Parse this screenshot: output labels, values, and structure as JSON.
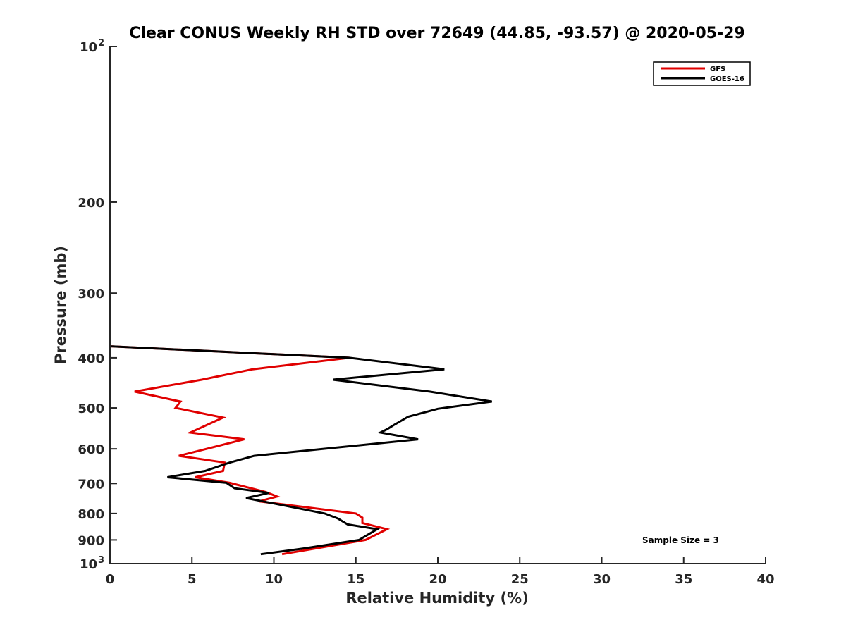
{
  "chart_data": {
    "type": "line",
    "title": "Clear CONUS Weekly RH STD over 72649 (44.85, -93.57) @ 2020-05-29",
    "xlabel": "Relative Humidity (%)",
    "ylabel": "Pressure (mb)",
    "xlim": [
      0,
      40
    ],
    "ylim": [
      100,
      1000
    ],
    "y_scale": "log",
    "y_reversed": true,
    "x_ticks": [
      "0",
      "5",
      "10",
      "15",
      "20",
      "25",
      "30",
      "35",
      "40"
    ],
    "y_ticks": [
      {
        "value": 100,
        "label": "10",
        "exp": "2"
      },
      {
        "value": 200,
        "label": "200",
        "exp": ""
      },
      {
        "value": 300,
        "label": "300",
        "exp": ""
      },
      {
        "value": 400,
        "label": "400",
        "exp": ""
      },
      {
        "value": 500,
        "label": "500",
        "exp": ""
      },
      {
        "value": 600,
        "label": "600",
        "exp": ""
      },
      {
        "value": 700,
        "label": "700",
        "exp": ""
      },
      {
        "value": 800,
        "label": "800",
        "exp": ""
      },
      {
        "value": 900,
        "label": "900",
        "exp": ""
      },
      {
        "value": 1000,
        "label": "10",
        "exp": "3"
      }
    ],
    "legend_position": "top-right",
    "grid": false,
    "annotation": "Sample Size = 3",
    "series": [
      {
        "name": "GFS",
        "color": "#e00000",
        "points": [
          [
            0,
            100
          ],
          [
            0,
            380
          ],
          [
            14.6,
            400
          ],
          [
            8.7,
            421
          ],
          [
            5.6,
            441
          ],
          [
            1.5,
            465
          ],
          [
            4.3,
            486
          ],
          [
            4.0,
            500
          ],
          [
            6.9,
            522
          ],
          [
            4.9,
            558
          ],
          [
            8.2,
            575
          ],
          [
            4.2,
            619
          ],
          [
            7.0,
            638
          ],
          [
            6.9,
            662
          ],
          [
            5.2,
            681
          ],
          [
            7.3,
            698
          ],
          [
            9.5,
            727
          ],
          [
            10.2,
            742
          ],
          [
            9.1,
            758
          ],
          [
            15.0,
            800
          ],
          [
            15.4,
            815
          ],
          [
            15.4,
            835
          ],
          [
            16.9,
            858
          ],
          [
            15.6,
            900
          ],
          [
            10.5,
            959
          ]
        ]
      },
      {
        "name": "GOES-16",
        "color": "#000000",
        "points": [
          [
            0,
            100
          ],
          [
            0,
            380
          ],
          [
            14.6,
            400
          ],
          [
            20.4,
            421
          ],
          [
            13.6,
            441
          ],
          [
            19.5,
            465
          ],
          [
            23.3,
            486
          ],
          [
            20.0,
            502
          ],
          [
            18.2,
            520
          ],
          [
            17.3,
            540
          ],
          [
            16.9,
            550
          ],
          [
            16.5,
            558
          ],
          [
            18.8,
            575
          ],
          [
            8.8,
            619
          ],
          [
            7.3,
            638
          ],
          [
            5.8,
            662
          ],
          [
            3.5,
            681
          ],
          [
            7.1,
            698
          ],
          [
            7.6,
            715
          ],
          [
            9.7,
            730
          ],
          [
            8.3,
            747
          ],
          [
            13.1,
            800
          ],
          [
            13.9,
            818
          ],
          [
            14.5,
            840
          ],
          [
            16.3,
            858
          ],
          [
            15.2,
            900
          ],
          [
            11.8,
            935
          ],
          [
            9.2,
            959
          ]
        ]
      }
    ]
  }
}
